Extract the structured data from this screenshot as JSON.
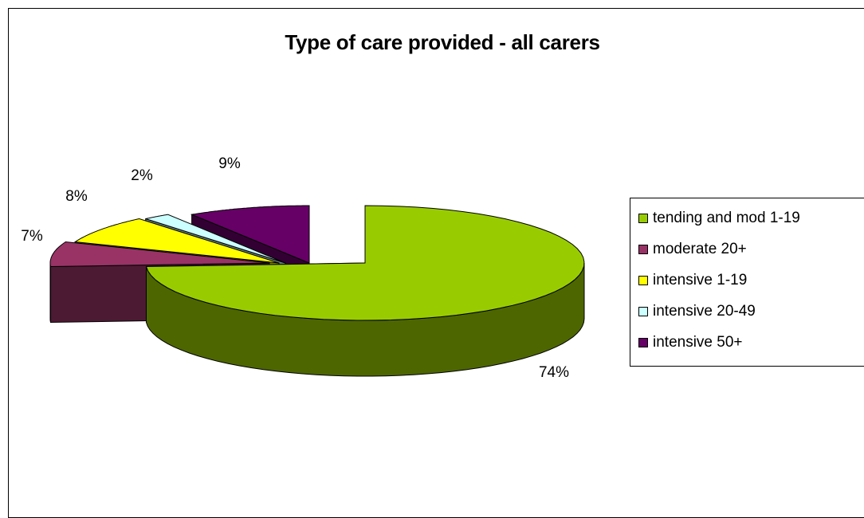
{
  "chart_data": {
    "type": "pie",
    "title": "Type of care provided - all carers",
    "categories": [
      "tending and mod 1-19",
      "moderate 20+",
      "intensive 1-19",
      "intensive 20-49",
      "intensive 50+"
    ],
    "values": [
      74,
      7,
      8,
      2,
      9
    ],
    "labels": [
      "74%",
      "7%",
      "8%",
      "2%",
      "9%"
    ],
    "colors": [
      "#99CC00",
      "#993366",
      "#FFFF00",
      "#CCFFFF",
      "#660066"
    ],
    "side_colors": [
      "#4D6600",
      "#4D1A33",
      "#808000",
      "#668080",
      "#330033"
    ],
    "exploded": true,
    "legend_position": "right"
  }
}
